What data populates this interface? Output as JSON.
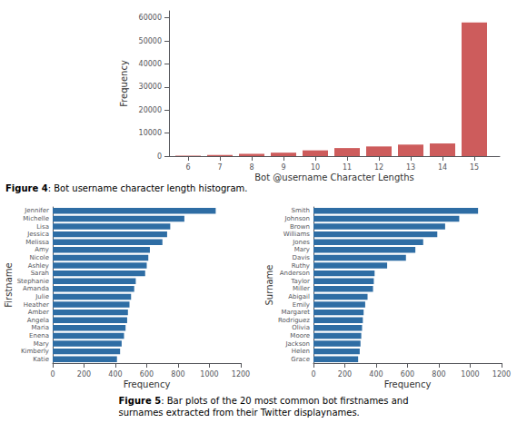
{
  "chart_data": [
    {
      "type": "bar",
      "x": [
        6,
        7,
        8,
        9,
        10,
        11,
        12,
        13,
        14,
        15
      ],
      "values": [
        200,
        500,
        1000,
        1500,
        2500,
        3500,
        4200,
        5000,
        5500,
        58000
      ],
      "color": "#cd5c5c",
      "xlabel": "Bot @username Character Lengths",
      "ylabel": "Frequency",
      "xlim": [
        5.4,
        15.8
      ],
      "xticks": [
        6,
        7,
        8,
        9,
        10,
        11,
        12,
        13,
        14,
        15
      ],
      "ylim": [
        0,
        63000
      ],
      "yticks": [
        0,
        10000,
        20000,
        30000,
        40000,
        50000,
        60000
      ],
      "grid": false,
      "annotations": [
        "Figure 4",
        ": Bot username character length histogram."
      ]
    },
    {
      "type": "bar",
      "orientation": "horizontal",
      "categories": [
        "Jennifer",
        "Michelle",
        "Lisa",
        "Jessica",
        "Melissa",
        "Amy",
        "Nicole",
        "Ashley",
        "Sarah",
        "Stephanie",
        "Amanda",
        "Julie",
        "Heather",
        "Amber",
        "Angela",
        "Maria",
        "Enena",
        "Mary",
        "Kimberly",
        "Katie"
      ],
      "values": [
        1040,
        840,
        750,
        730,
        700,
        620,
        610,
        600,
        590,
        530,
        520,
        500,
        490,
        480,
        475,
        465,
        455,
        440,
        430,
        410
      ],
      "color": "#2e6da4",
      "xlabel": "Frequency",
      "ylabel": "Firstname",
      "xlim": [
        0,
        1200
      ],
      "xticks": [
        0,
        200,
        400,
        600,
        800,
        1000,
        1200
      ],
      "grid": false
    },
    {
      "type": "bar",
      "orientation": "horizontal",
      "categories": [
        "Smith",
        "Johnson",
        "Brown",
        "Williams",
        "Jones",
        "Mary",
        "Davis",
        "Ruthy",
        "Anderson",
        "Taylor",
        "Miller",
        "Abigail",
        "Emily",
        "Margaret",
        "Rodriguez",
        "Olivia",
        "Moore",
        "Jackson",
        "Helen",
        "Grace"
      ],
      "values": [
        1050,
        930,
        840,
        790,
        700,
        650,
        590,
        470,
        390,
        385,
        380,
        345,
        330,
        320,
        315,
        310,
        305,
        300,
        295,
        285
      ],
      "color": "#2e6da4",
      "xlabel": "Frequency",
      "ylabel": "Surname",
      "xlim": [
        0,
        1200
      ],
      "xticks": [
        0,
        200,
        400,
        600,
        800,
        1000,
        1200
      ],
      "grid": false,
      "annotations": [
        "Figure 5",
        ": Bar plots of the 20 most common bot firstnames and",
        "surnames extracted from their Twitter displaynames."
      ]
    }
  ]
}
